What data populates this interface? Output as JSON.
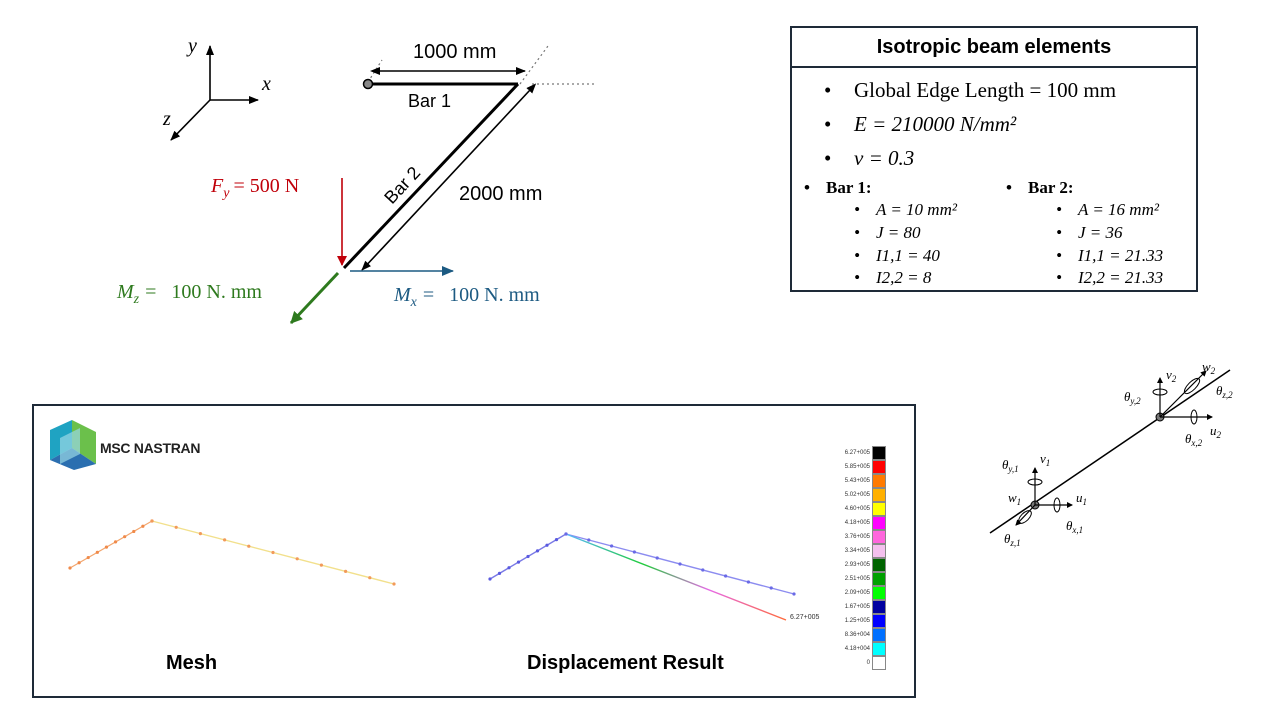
{
  "axes": {
    "x": "x",
    "y": "y",
    "z": "z"
  },
  "geometry": {
    "dim_bar1": "1000 mm",
    "dim_bar2": "2000 mm",
    "bar1_label": "Bar 1",
    "bar2_label": "Bar 2",
    "force_label": "F_y = 500 N",
    "force_sym": "F",
    "force_sub": "y",
    "force_val": "= 500 N",
    "mz_sym": "M",
    "mz_sub": "z",
    "mz_val": "=   100 N. mm",
    "mx_sym": "M",
    "mx_sub": "x",
    "mx_val": "=   100 N. mm"
  },
  "colors": {
    "force": "#c0000a",
    "moment_z": "#2e7a1e",
    "moment_x": "#1c5a82",
    "border": "#1e2a38"
  },
  "properties": {
    "title": "Isotropic beam elements",
    "items": [
      "Global Edge Length = 100 mm",
      "E = 210000 N/mm²",
      "ν = 0.3"
    ],
    "bar1": {
      "name": "Bar 1",
      "values": [
        "A = 10 mm²",
        "J = 80",
        "I1,1 = 40",
        "I2,2 = 8"
      ]
    },
    "bar2": {
      "name": "Bar 2",
      "values": [
        "A = 16 mm²",
        "J = 36",
        "I1,1 = 21.33",
        "I2,2 = 21.33"
      ]
    }
  },
  "results": {
    "logo_text": "MSC NASTRAN",
    "caption_mesh": "Mesh",
    "caption_disp": "Displacement Result",
    "max_label": "6.27+005",
    "legend": [
      {
        "label": "6.27+005",
        "color": "#000000"
      },
      {
        "label": "5.85+005",
        "color": "#ff0000"
      },
      {
        "label": "5.43+005",
        "color": "#ff7a00"
      },
      {
        "label": "5.02+005",
        "color": "#ffb000"
      },
      {
        "label": "4.60+005",
        "color": "#ffff00"
      },
      {
        "label": "4.18+005",
        "color": "#ff00ff"
      },
      {
        "label": "3.76+005",
        "color": "#ff66dd"
      },
      {
        "label": "3.34+005",
        "color": "#f4c0ee"
      },
      {
        "label": "2.93+005",
        "color": "#006400"
      },
      {
        "label": "2.51+005",
        "color": "#00a000"
      },
      {
        "label": "2.09+005",
        "color": "#00ff00"
      },
      {
        "label": "1.67+005",
        "color": "#0000a0"
      },
      {
        "label": "1.25+005",
        "color": "#0000ff"
      },
      {
        "label": "8.36+004",
        "color": "#0070ff"
      },
      {
        "label": "4.18+004",
        "color": "#00ffff"
      },
      {
        "label": "0",
        "color": "#ffffff"
      }
    ]
  },
  "dof": {
    "node1": {
      "v": "v",
      "v_sub": "1",
      "ty": "θ",
      "ty_sub": "y,1",
      "w": "w",
      "w_sub": "1",
      "tz": "θ",
      "tz_sub": "z,1",
      "u": "u",
      "u_sub": "1",
      "tx": "θ",
      "tx_sub": "x,1"
    },
    "node2": {
      "v": "v",
      "v_sub": "2",
      "ty": "θ",
      "ty_sub": "y,2",
      "w": "w",
      "w_sub": "2",
      "tz": "θ",
      "tz_sub": "z,2",
      "u": "u",
      "u_sub": "2",
      "tx": "θ",
      "tx_sub": "x,2"
    }
  }
}
